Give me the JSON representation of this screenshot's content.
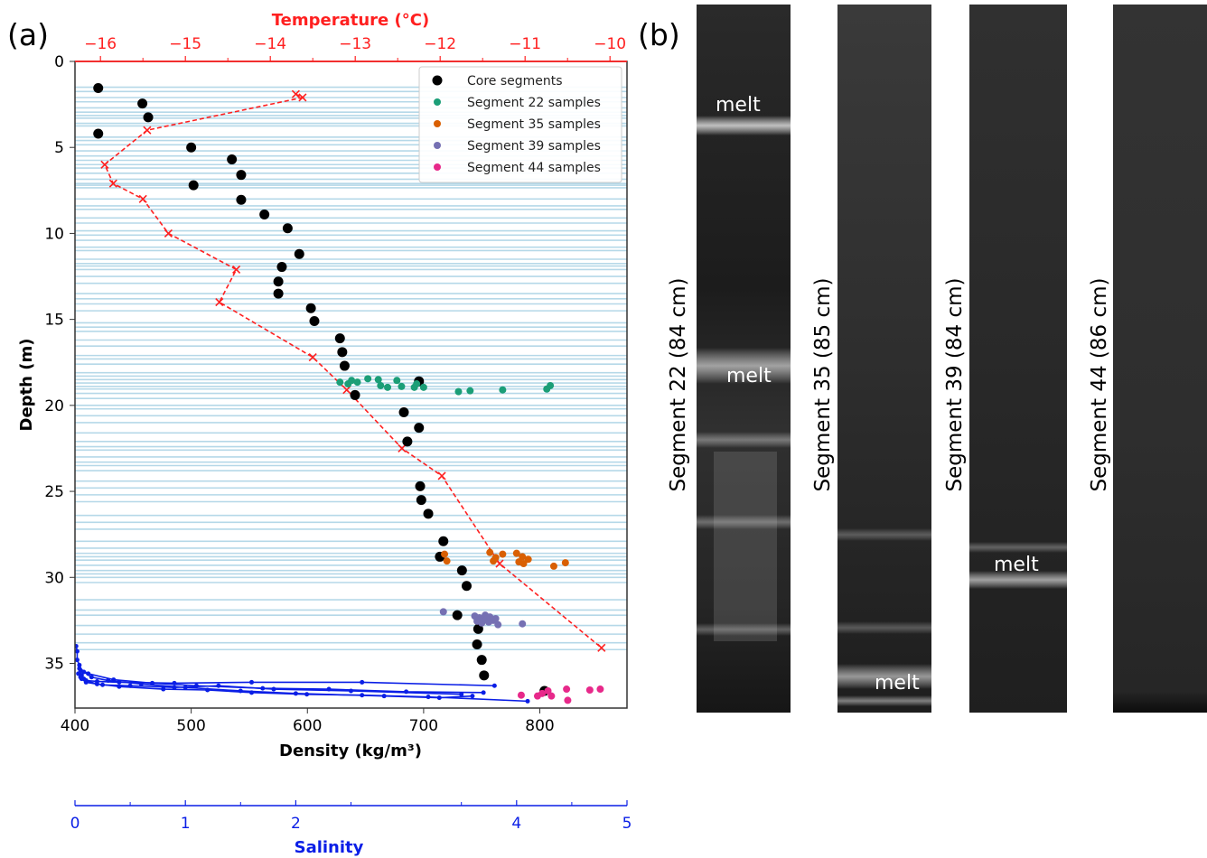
{
  "panel_labels": {
    "a": "(a)",
    "b": "(b)"
  },
  "colors": {
    "temperature": "#ff2020",
    "salinity": "#0a1ee6",
    "core": "#000000",
    "seg22": "#1b9e77",
    "seg35": "#d95f02",
    "seg39": "#7570b3",
    "seg44": "#e7298a",
    "layer_lines": "#b5d8e8"
  },
  "chart_data": {
    "type": "scatter",
    "xlabel": "Density (kg/m³)",
    "ylabel": "Depth (m)",
    "xlim": [
      400,
      875
    ],
    "ylim": [
      37.6,
      0
    ],
    "x_ticks": [
      "400",
      "500",
      "600",
      "700",
      "800"
    ],
    "y_ticks": [
      "0",
      "5",
      "10",
      "15",
      "20",
      "25",
      "30",
      "35"
    ],
    "top_axis": {
      "label": "Temperature (°C)",
      "range": [
        -16.3,
        -9.8
      ],
      "ticks": [
        "−16",
        "−15",
        "−14",
        "−13",
        "−12",
        "−11",
        "−10"
      ]
    },
    "bottom_axis2": {
      "label": "Salinity",
      "range": [
        0,
        5
      ],
      "ticks": [
        "0",
        "1",
        "2",
        "4",
        "5"
      ]
    },
    "legend": {
      "position": "top-right",
      "entries": [
        "Core segments",
        "Segment 22 samples",
        "Segment 35 samples",
        "Segment 39 samples",
        "Segment 44 samples"
      ]
    },
    "layer_lines": [
      1.5,
      1.75,
      2.1,
      2.35,
      2.7,
      2.95,
      3.15,
      3.3,
      3.6,
      3.75,
      4.4,
      4.6,
      4.85,
      5.2,
      5.5,
      5.75,
      6.0,
      6.2,
      6.5,
      6.85,
      7.1,
      7.2,
      7.35,
      8.0,
      8.4,
      8.6,
      9.1,
      9.4,
      9.85,
      10.1,
      10.4,
      10.8,
      11.0,
      11.5,
      11.75,
      11.9,
      12.1,
      12.5,
      12.9,
      13.5,
      13.8,
      14.1,
      14.5,
      15.2,
      15.45,
      15.7,
      16.2,
      16.55,
      17.1,
      17.3,
      17.6,
      18.1,
      18.3,
      18.5,
      18.7,
      18.9,
      19.05,
      19.3,
      19.6,
      20.0,
      20.2,
      20.6,
      21.0,
      21.6,
      22.1,
      22.4,
      22.6,
      23.0,
      23.3,
      23.5,
      23.8,
      24.4,
      24.8,
      25.2,
      25.6,
      26.4,
      26.8,
      27.2,
      27.9,
      28.3,
      28.6,
      28.8,
      29.0,
      29.3,
      29.6,
      29.8,
      30.0,
      30.3,
      31.3,
      31.9,
      32.2,
      32.8,
      33.3,
      33.8,
      34.2
    ],
    "core_segments": {
      "x": [
        420,
        458,
        463,
        420,
        500,
        535,
        543,
        502,
        543,
        563,
        583,
        593,
        578,
        575,
        575,
        603,
        606,
        628,
        630,
        632,
        696,
        641,
        683,
        696,
        686,
        697,
        698,
        704,
        717,
        714,
        733,
        737,
        729,
        747,
        746,
        750,
        752,
        804
      ],
      "y": [
        1.55,
        2.45,
        3.25,
        4.2,
        5.0,
        5.7,
        6.6,
        7.2,
        8.05,
        8.9,
        9.7,
        11.2,
        11.95,
        12.8,
        13.5,
        14.35,
        15.1,
        16.1,
        16.9,
        17.7,
        18.6,
        19.4,
        20.4,
        21.3,
        22.1,
        24.7,
        25.5,
        26.3,
        27.9,
        28.8,
        29.6,
        30.5,
        32.2,
        33.0,
        33.9,
        34.8,
        35.7,
        36.6
      ]
    },
    "segment22": {
      "x": [
        628,
        635,
        638,
        643,
        652,
        661,
        663,
        669,
        677,
        681,
        692,
        694,
        700,
        730,
        740,
        768,
        806,
        809
      ],
      "y": [
        18.65,
        18.75,
        18.55,
        18.65,
        18.45,
        18.5,
        18.85,
        18.95,
        18.55,
        18.9,
        18.95,
        18.75,
        18.95,
        19.2,
        19.15,
        19.1,
        19.05,
        18.85
      ],
      "label": "Segment 22 samples"
    },
    "segment35": {
      "x": [
        718,
        720,
        757,
        760,
        762,
        768,
        780,
        782,
        785,
        786,
        790,
        812,
        822
      ],
      "y": [
        28.65,
        29.05,
        28.55,
        29.05,
        28.85,
        28.65,
        28.6,
        29.1,
        28.8,
        29.2,
        28.95,
        29.35,
        29.15
      ],
      "label": "Segment 35 samples"
    },
    "segment39": {
      "x": [
        717,
        744,
        746,
        748,
        750,
        752,
        753,
        754,
        756,
        757,
        760,
        762,
        764,
        785
      ],
      "y": [
        32.0,
        32.25,
        32.55,
        32.35,
        32.65,
        32.4,
        32.2,
        32.45,
        32.6,
        32.3,
        32.5,
        32.4,
        32.75,
        32.7
      ],
      "label": "Segment 39 samples"
    },
    "segment44": {
      "x": [
        784,
        798,
        802,
        807,
        810,
        823,
        824,
        843,
        852
      ],
      "y": [
        36.85,
        36.9,
        36.75,
        36.6,
        36.9,
        36.5,
        37.15,
        36.55,
        36.5
      ],
      "label": "Segment 44 samples"
    },
    "temperature_profile": {
      "temperature": [
        -13.7,
        -13.62,
        -15.45,
        -15.95,
        -15.85,
        -15.5,
        -15.2,
        -14.4,
        -14.6,
        -13.5,
        -13.1,
        -12.45,
        -11.98,
        -11.3,
        -10.1
      ],
      "depth": [
        1.9,
        2.1,
        4.0,
        6.0,
        7.1,
        8.0,
        10.0,
        12.1,
        14.0,
        17.2,
        19.1,
        22.5,
        24.1,
        29.2,
        34.1
      ]
    },
    "salinity_profile": {
      "series": [
        {
          "salinity": [
            0.01,
            0.02,
            0.02,
            0.04,
            0.05,
            0.06,
            0.08,
            0.1,
            0.2,
            0.4,
            0.9,
            1.6,
            2.6,
            3.8
          ],
          "depth": [
            34.0,
            34.3,
            34.8,
            35.1,
            35.4,
            35.7,
            35.9,
            36.0,
            36.05,
            36.1,
            36.15,
            36.1,
            36.1,
            36.3
          ]
        },
        {
          "salinity": [
            0.03,
            0.06,
            0.1,
            0.25,
            0.5,
            0.9,
            1.3,
            1.8,
            2.5,
            3.5
          ],
          "depth": [
            35.6,
            35.9,
            36.1,
            36.25,
            36.3,
            36.4,
            36.3,
            36.5,
            36.6,
            36.8
          ]
        },
        {
          "salinity": [
            0.05,
            0.1,
            0.2,
            0.4,
            0.8,
            1.2,
            1.6,
            2.1,
            2.6,
            3.2,
            4.1
          ],
          "depth": [
            35.8,
            36.0,
            36.2,
            36.35,
            36.5,
            36.55,
            36.7,
            36.8,
            36.85,
            36.95,
            37.2
          ]
        },
        {
          "salinity": [
            0.08,
            0.15,
            0.3,
            0.6,
            1.0,
            1.5,
            2.0,
            2.8,
            3.3,
            3.6
          ],
          "depth": [
            35.5,
            35.8,
            36.0,
            36.2,
            36.4,
            36.6,
            36.75,
            36.9,
            37.0,
            36.9
          ]
        },
        {
          "salinity": [
            0.04,
            0.12,
            0.35,
            0.7,
            1.1,
            1.7,
            2.3,
            3.0,
            3.7
          ],
          "depth": [
            35.3,
            35.6,
            35.95,
            36.15,
            36.3,
            36.45,
            36.5,
            36.65,
            36.7
          ]
        }
      ]
    }
  },
  "core_images": [
    {
      "label": "Segment 22 (84 cm)",
      "melt_labels": [
        "melt",
        "melt"
      ]
    },
    {
      "label": "Segment 35 (85 cm)",
      "melt_labels": [
        "melt"
      ]
    },
    {
      "label": "Segment 39 (84 cm)",
      "melt_labels": [
        "melt"
      ]
    },
    {
      "label": "Segment  44 (86 cm)",
      "melt_labels": []
    }
  ]
}
